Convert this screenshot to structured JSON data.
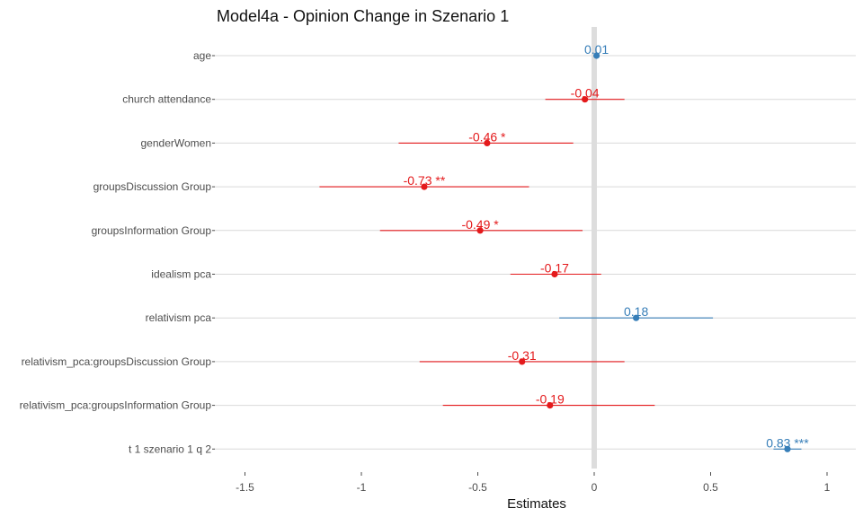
{
  "chart_data": {
    "type": "forest",
    "title": "Model4a - Opinion Change in Szenario 1",
    "xlabel": "Estimates",
    "xlim": [
      -1.65,
      1.12
    ],
    "xticks": [
      -1.5,
      -1,
      -0.5,
      0,
      0.5,
      1
    ],
    "xtick_labels": [
      "-1.5",
      "-1",
      "-0.5",
      "0",
      "0.5",
      "1"
    ],
    "colors": {
      "negative": "#e41a1c",
      "positive": "#377eb8",
      "reference_line": "#dddddd",
      "grid": "#d9d9d9"
    },
    "terms": [
      {
        "term": "age",
        "estimate": 0.01,
        "ci_low": 0.0,
        "ci_high": 0.02,
        "label": "0.01"
      },
      {
        "term": "church attendance",
        "estimate": -0.04,
        "ci_low": -0.21,
        "ci_high": 0.13,
        "label": "-0.04"
      },
      {
        "term": "genderWomen",
        "estimate": -0.46,
        "ci_low": -0.84,
        "ci_high": -0.09,
        "label": "-0.46 *"
      },
      {
        "term": "groupsDiscussion Group",
        "estimate": -0.73,
        "ci_low": -1.18,
        "ci_high": -0.28,
        "label": "-0.73 **"
      },
      {
        "term": "groupsInformation Group",
        "estimate": -0.49,
        "ci_low": -0.92,
        "ci_high": -0.05,
        "label": "-0.49 *"
      },
      {
        "term": "idealism pca",
        "estimate": -0.17,
        "ci_low": -0.36,
        "ci_high": 0.03,
        "label": "-0.17"
      },
      {
        "term": "relativism pca",
        "estimate": 0.18,
        "ci_low": -0.15,
        "ci_high": 0.51,
        "label": "0.18"
      },
      {
        "term": "relativism_pca:groupsDiscussion Group",
        "estimate": -0.31,
        "ci_low": -0.75,
        "ci_high": 0.13,
        "label": "-0.31"
      },
      {
        "term": "relativism_pca:groupsInformation Group",
        "estimate": -0.19,
        "ci_low": -0.65,
        "ci_high": 0.26,
        "label": "-0.19"
      },
      {
        "term": "t 1 szenario 1 q 2",
        "estimate": 0.83,
        "ci_low": 0.77,
        "ci_high": 0.89,
        "label": "0.83 ***"
      }
    ]
  }
}
